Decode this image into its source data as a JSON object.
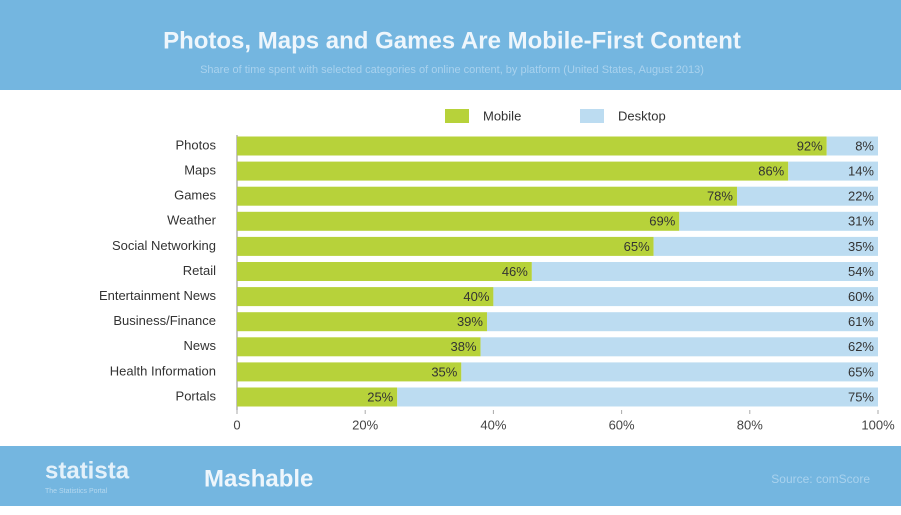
{
  "chart_data": {
    "type": "stacked-bar-horizontal",
    "title": "Photos, Maps and Games Are Mobile-First Content",
    "subtitle": "Share of time spent with selected categories of online content, by platform (United States, August 2013)",
    "categories": [
      "Photos",
      "Maps",
      "Games",
      "Weather",
      "Social Networking",
      "Retail",
      "Entertainment News",
      "Business/Finance",
      "News",
      "Health Information",
      "Portals"
    ],
    "series": [
      {
        "name": "Mobile",
        "color": "#b7d23a",
        "values": [
          92,
          86,
          78,
          69,
          65,
          46,
          40,
          39,
          38,
          35,
          25
        ],
        "value_labels": [
          "92%",
          "86%",
          "78%",
          "69%",
          "65%",
          "46%",
          "40%",
          "39%",
          "38%",
          "35%",
          "25%"
        ]
      },
      {
        "name": "Desktop",
        "color": "#bcdcf1",
        "values": [
          8,
          14,
          22,
          31,
          35,
          54,
          60,
          61,
          62,
          65,
          75
        ],
        "value_labels": [
          "8%",
          "14%",
          "22%",
          "31%",
          "35%",
          "54%",
          "60%",
          "61%",
          "62%",
          "65%",
          "75%"
        ]
      }
    ],
    "xlim": [
      0,
      100
    ],
    "xticks": [
      0,
      {
        "value": 20,
        "label": "20%"
      },
      {
        "value": 40,
        "label": "40%"
      },
      {
        "value": 60,
        "label": "60%"
      },
      {
        "value": 80,
        "label": "80%"
      },
      {
        "value": 100,
        "label": "100%"
      }
    ],
    "footer": {
      "brand": "statista",
      "brand_tagline": "The Statistics Portal",
      "partner": "Mashable",
      "source": "Source: comScore"
    }
  }
}
